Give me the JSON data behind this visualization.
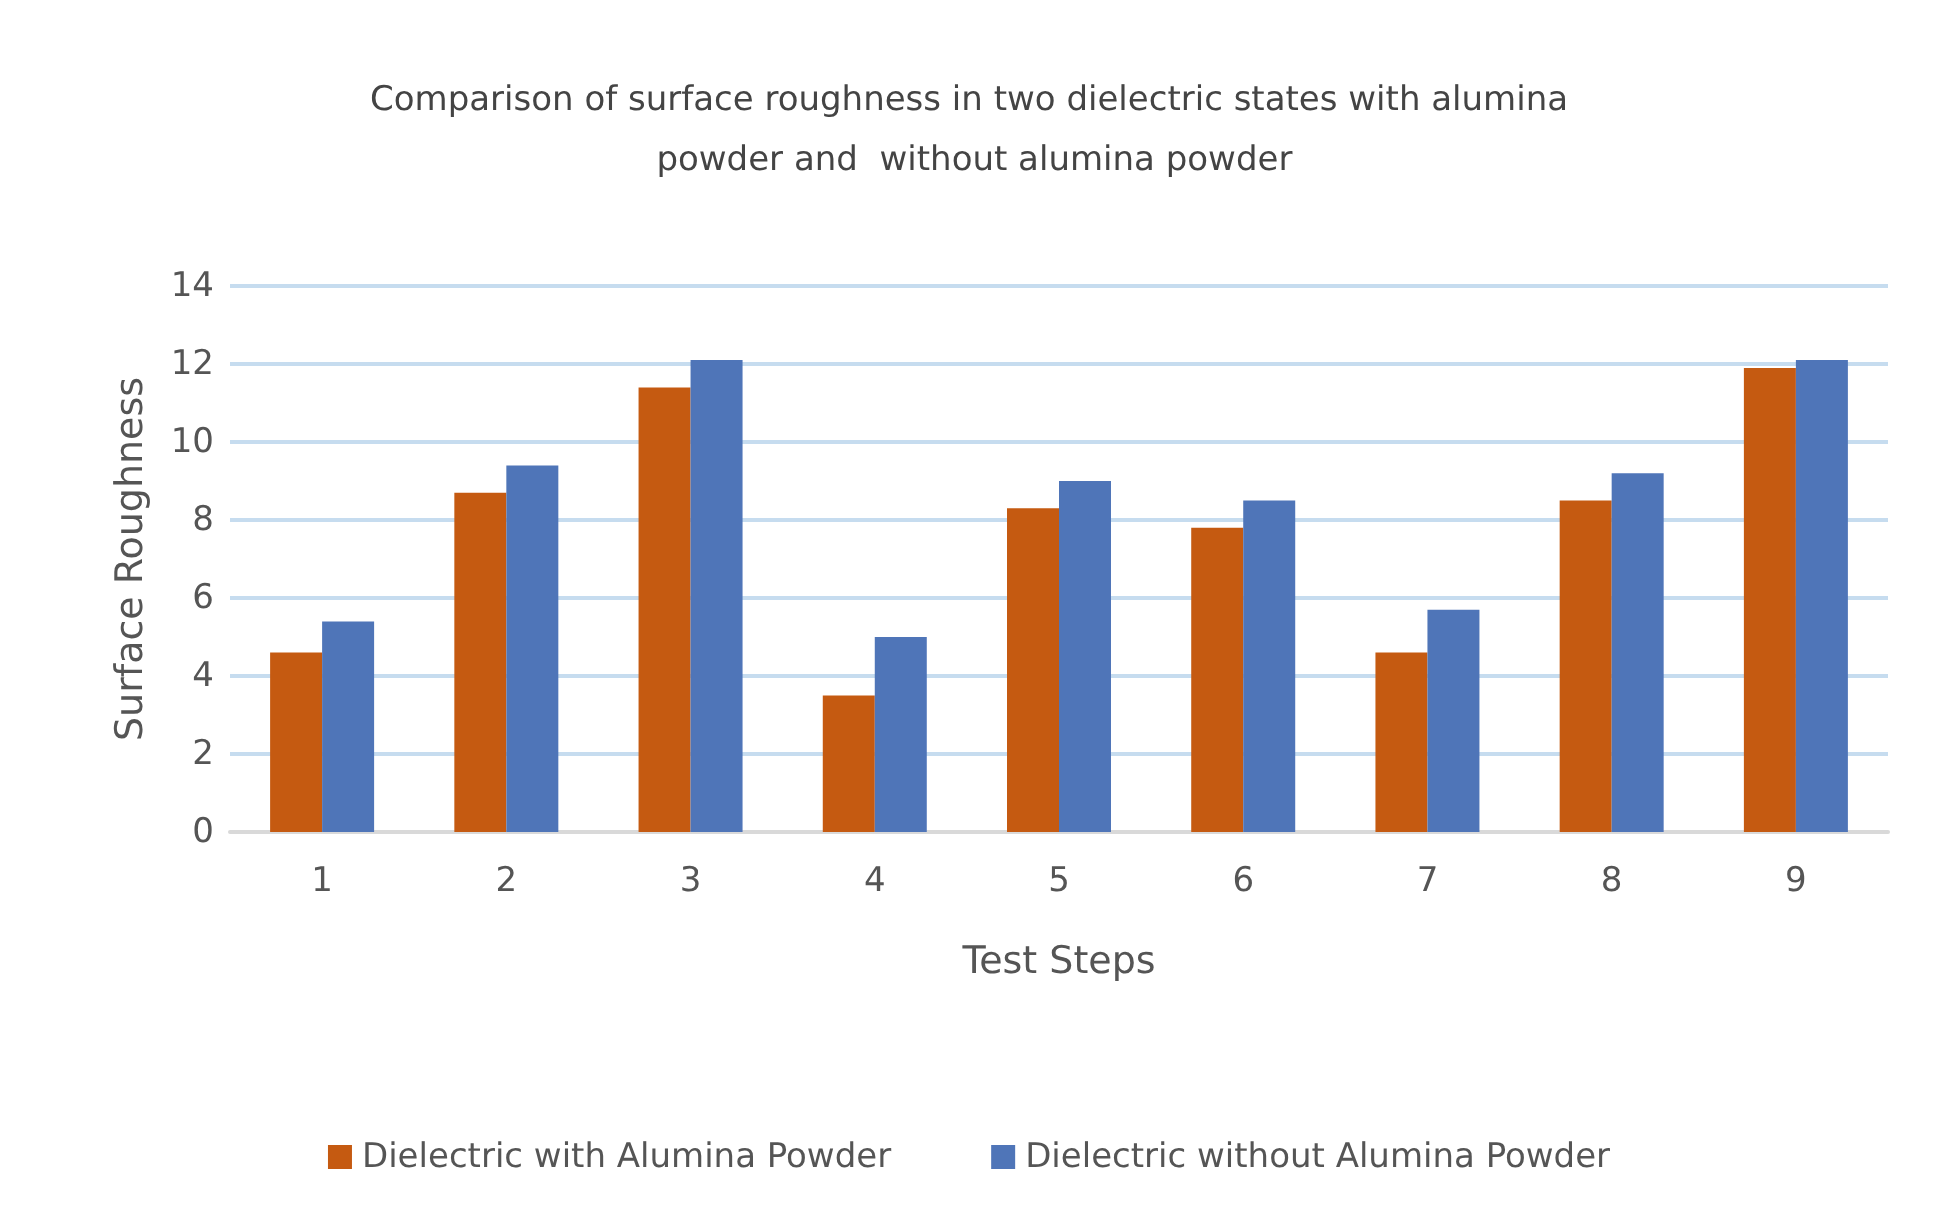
{
  "chart_data": {
    "type": "bar",
    "title": "Comparison of surface roughness in two dielectric states with alumina powder and  without alumina powder",
    "xlabel": "Test Steps",
    "ylabel": "Surface Roughness",
    "categories": [
      "1",
      "2",
      "3",
      "4",
      "5",
      "6",
      "7",
      "8",
      "9"
    ],
    "series": [
      {
        "name": "Dielectric with Alumina Powder",
        "color": "#c55a11",
        "values": [
          4.6,
          8.7,
          11.4,
          3.5,
          8.3,
          7.8,
          4.6,
          8.5,
          11.9
        ]
      },
      {
        "name": "Dielectric without Alumina Powder",
        "color": "#4f75b8",
        "values": [
          5.4,
          9.4,
          12.1,
          5.0,
          9.0,
          8.5,
          5.7,
          9.2,
          12.1
        ]
      }
    ],
    "ylim": [
      0,
      14
    ],
    "yticks": [
      0,
      2,
      4,
      6,
      8,
      10,
      12,
      14
    ],
    "grid": "y",
    "legend": "bottom"
  }
}
